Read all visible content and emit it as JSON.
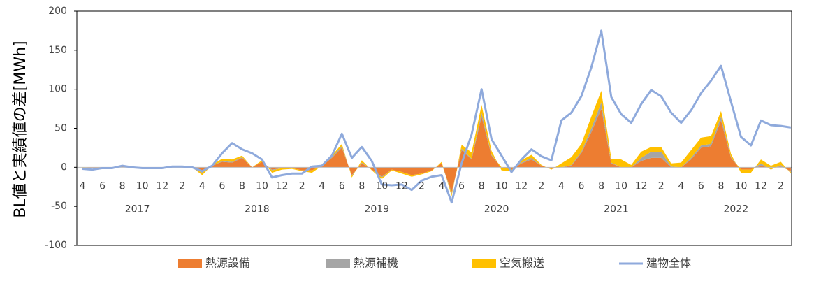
{
  "chart_data": {
    "type": "stacked_area_line",
    "y_label": "BL値と実績値の差[MWh]",
    "categories": [
      "4",
      null,
      "6",
      null,
      "8",
      null,
      "10",
      null,
      "12",
      null,
      "2",
      null,
      "4",
      null,
      "6",
      null,
      "8",
      null,
      "10",
      null,
      "12",
      null,
      "2",
      null,
      "4",
      null,
      "6",
      null,
      "8",
      null,
      "10",
      null,
      "12",
      null,
      "2",
      null,
      "4",
      null,
      "6",
      null,
      "8",
      null,
      "10",
      null,
      "12",
      null,
      "2",
      null,
      "4",
      null,
      "6",
      null,
      "8",
      null,
      "10",
      null,
      "12",
      null,
      "2",
      null,
      "4",
      null,
      "6",
      null,
      "8",
      null,
      "10",
      null,
      "12",
      null,
      "2",
      null
    ],
    "years": [
      "2017",
      "2018",
      "2019",
      "2020",
      "2021",
      "2022"
    ],
    "ylim": [
      -100,
      200
    ],
    "yticks": [
      -100,
      -50,
      0,
      50,
      100,
      150,
      200
    ],
    "grid": false,
    "legend": "bottom",
    "series": [
      {
        "name": "熱源設備",
        "kind": "area",
        "color": "#ed7d31",
        "values": [
          0,
          -1,
          -1,
          0,
          2,
          0,
          -1,
          -1,
          -1,
          1,
          1,
          0,
          -6,
          2,
          7,
          6,
          12,
          0,
          7,
          -3,
          -1,
          -1,
          -4,
          -4,
          2,
          12,
          25,
          -10,
          5,
          -3,
          -12,
          -3,
          -6,
          -10,
          -8,
          -4,
          5,
          -32,
          22,
          10,
          65,
          15,
          0,
          -3,
          5,
          10,
          2,
          -2,
          0,
          2,
          18,
          45,
          75,
          5,
          0,
          0,
          8,
          12,
          12,
          0,
          0,
          10,
          25,
          27,
          60,
          12,
          -3,
          -3,
          2,
          -1,
          1,
          -5
        ]
      },
      {
        "name": "熱源補機",
        "kind": "area",
        "color": "#a5a5a5",
        "values": [
          0,
          0,
          0,
          0,
          0,
          0,
          0,
          0,
          0,
          0,
          0,
          0,
          -1,
          0,
          1,
          1,
          1,
          0,
          0,
          -1,
          0,
          0,
          0,
          0,
          0,
          1,
          2,
          -1,
          1,
          0,
          -1,
          0,
          0,
          0,
          0,
          0,
          0,
          -2,
          2,
          1,
          5,
          1,
          0,
          0,
          1,
          2,
          0,
          0,
          0,
          1,
          2,
          5,
          8,
          1,
          0,
          0,
          4,
          8,
          8,
          1,
          0,
          2,
          3,
          3,
          5,
          1,
          0,
          0,
          3,
          -2,
          2,
          -1
        ]
      },
      {
        "name": "空気搬送",
        "kind": "area",
        "color": "#ffc000",
        "values": [
          -1,
          0,
          0,
          0,
          1,
          0,
          0,
          0,
          0,
          0,
          0,
          0,
          -3,
          1,
          3,
          3,
          2,
          0,
          2,
          -3,
          -2,
          -1,
          -1,
          -3,
          0,
          2,
          3,
          -2,
          3,
          -1,
          -2,
          -1,
          -2,
          -2,
          -1,
          -1,
          2,
          -3,
          5,
          8,
          10,
          5,
          -4,
          -2,
          3,
          4,
          1,
          -1,
          5,
          10,
          10,
          15,
          15,
          5,
          10,
          3,
          8,
          6,
          6,
          4,
          6,
          10,
          10,
          10,
          7,
          4,
          -4,
          -4,
          5,
          5,
          4,
          -2
        ]
      },
      {
        "name": "建物全体",
        "kind": "line",
        "color": "#8faadc",
        "values": [
          -2,
          -3,
          -1,
          -1,
          2,
          0,
          -1,
          -1,
          -1,
          1,
          1,
          0,
          -5,
          2,
          18,
          31,
          23,
          18,
          10,
          -13,
          -10,
          -8,
          -8,
          1,
          2,
          15,
          43,
          12,
          26,
          8,
          -22,
          -23,
          -22,
          -29,
          -17,
          -12,
          -10,
          -45,
          5,
          42,
          100,
          36,
          15,
          -6,
          10,
          23,
          14,
          9,
          60,
          70,
          91,
          128,
          175,
          90,
          68,
          57,
          81,
          99,
          91,
          70,
          57,
          73,
          95,
          111,
          130,
          84,
          39,
          28,
          60,
          54,
          53,
          51
        ]
      }
    ]
  }
}
